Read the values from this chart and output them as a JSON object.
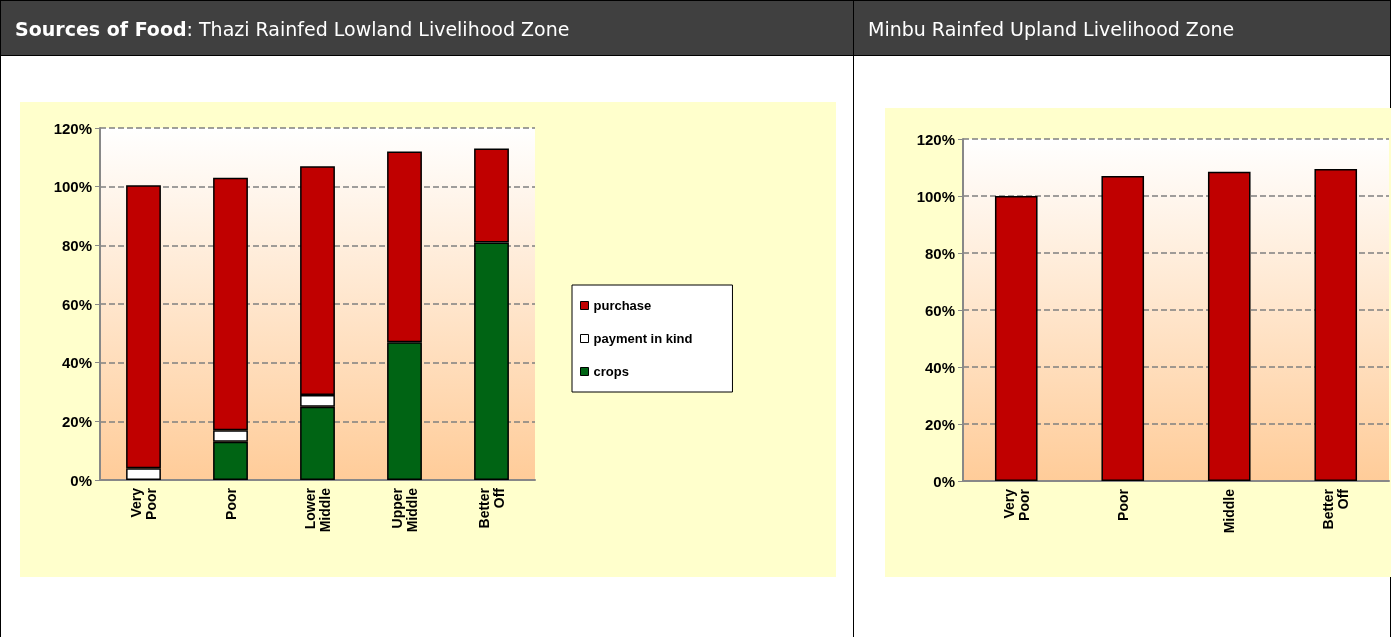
{
  "chart_data": [
    {
      "type": "bar",
      "title": "Sources of Food: Thazi Rainfed Lowland Livelihood Zone",
      "categories": [
        "Very Poor",
        "Poor",
        "Lower Middle",
        "Upper Middle",
        "Better Off"
      ],
      "stacked": true,
      "series": [
        {
          "name": "crops",
          "color": "#006414",
          "values": [
            0,
            13,
            25,
            47,
            81
          ]
        },
        {
          "name": "payment in kind",
          "color": "#ffffff",
          "values": [
            4,
            4,
            4,
            0,
            0
          ]
        },
        {
          "name": "purchase",
          "color": "#c00000",
          "values": [
            96.5,
            86,
            78,
            65,
            32
          ]
        }
      ],
      "ylim": [
        0,
        120
      ],
      "yticks": [
        {
          "value": 0,
          "label": "0%"
        },
        {
          "value": 20,
          "label": "20%"
        },
        {
          "value": 40,
          "label": "40%"
        },
        {
          "value": 60,
          "label": "60%"
        },
        {
          "value": 80,
          "label": "80%"
        },
        {
          "value": 100,
          "label": "100%"
        },
        {
          "value": 120,
          "label": "120%"
        }
      ],
      "grid": "y",
      "legend": "right"
    },
    {
      "type": "bar",
      "title": "Minbu Rainfed Upland Livelihood Zone",
      "categories": [
        "Very Poor",
        "Poor",
        "Middle",
        "Better Off"
      ],
      "series": [
        {
          "color": "#c00000",
          "values": [
            100,
            107,
            108.5,
            109.5
          ]
        }
      ],
      "ylim": [
        0,
        120
      ],
      "yticks": [
        {
          "value": 0,
          "label": "0%"
        },
        {
          "value": 20,
          "label": "20%"
        },
        {
          "value": 40,
          "label": "40%"
        },
        {
          "value": 60,
          "label": "60%"
        },
        {
          "value": 80,
          "label": "80%"
        },
        {
          "value": 100,
          "label": "100%"
        },
        {
          "value": 120,
          "label": "120%"
        }
      ],
      "grid": "y",
      "legend": false
    }
  ]
}
